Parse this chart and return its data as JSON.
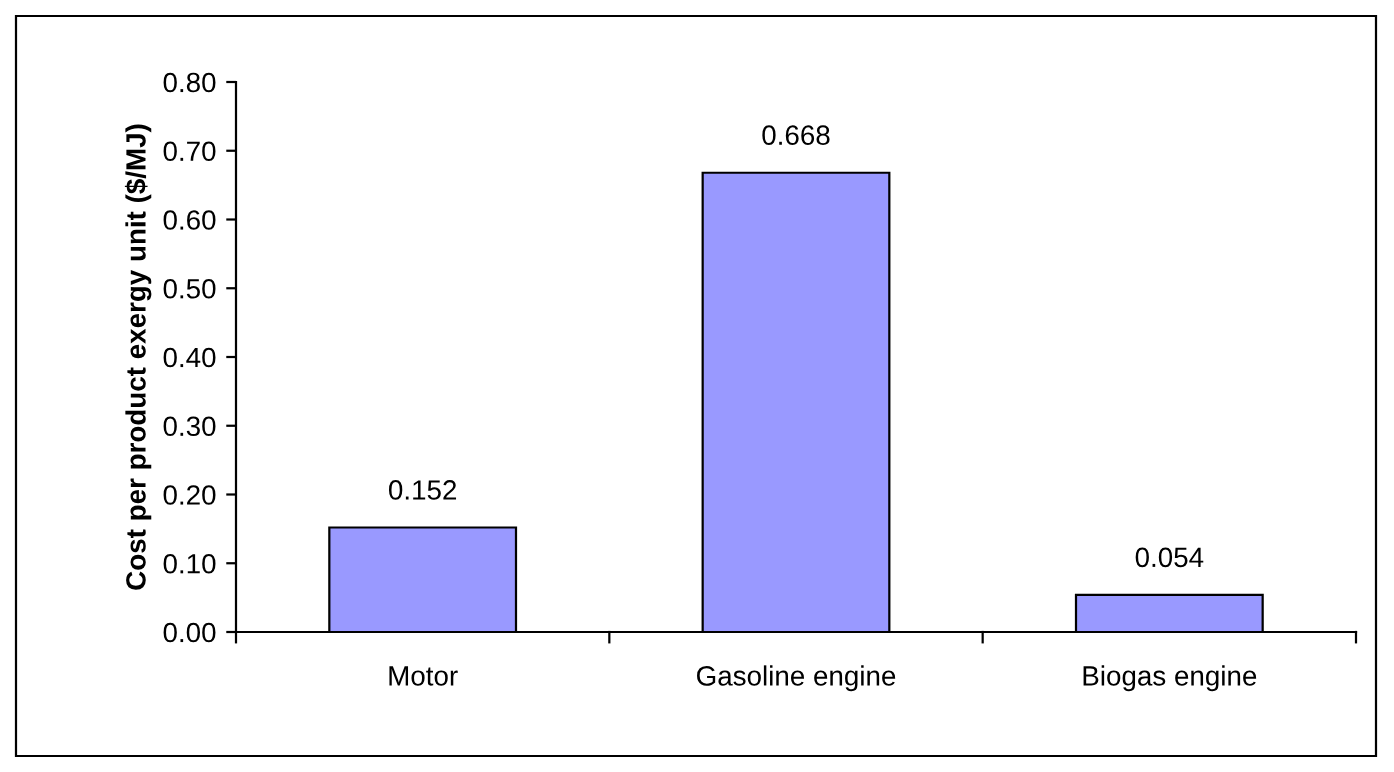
{
  "chart_data": {
    "type": "bar",
    "ylabel": "Cost per product exergy unit ($/MJ)",
    "categories": [
      "Motor",
      "Gasoline engine",
      "Biogas engine"
    ],
    "values": [
      0.152,
      0.668,
      0.054
    ],
    "color": "#9999ff",
    "ylim": [
      0,
      0.8
    ],
    "yticks": [
      {
        "value": 0,
        "label": "0.00"
      },
      {
        "value": 0.1,
        "label": "0.10"
      },
      {
        "value": 0.2,
        "label": "0.20"
      },
      {
        "value": 0.3,
        "label": "0.30"
      },
      {
        "value": 0.4,
        "label": "0.40"
      },
      {
        "value": 0.5,
        "label": "0.50"
      },
      {
        "value": 0.6,
        "label": "0.60"
      },
      {
        "value": 0.7,
        "label": "0.70"
      },
      {
        "value": 0.8,
        "label": "0.80"
      }
    ],
    "grid": false,
    "data_labels": true
  }
}
